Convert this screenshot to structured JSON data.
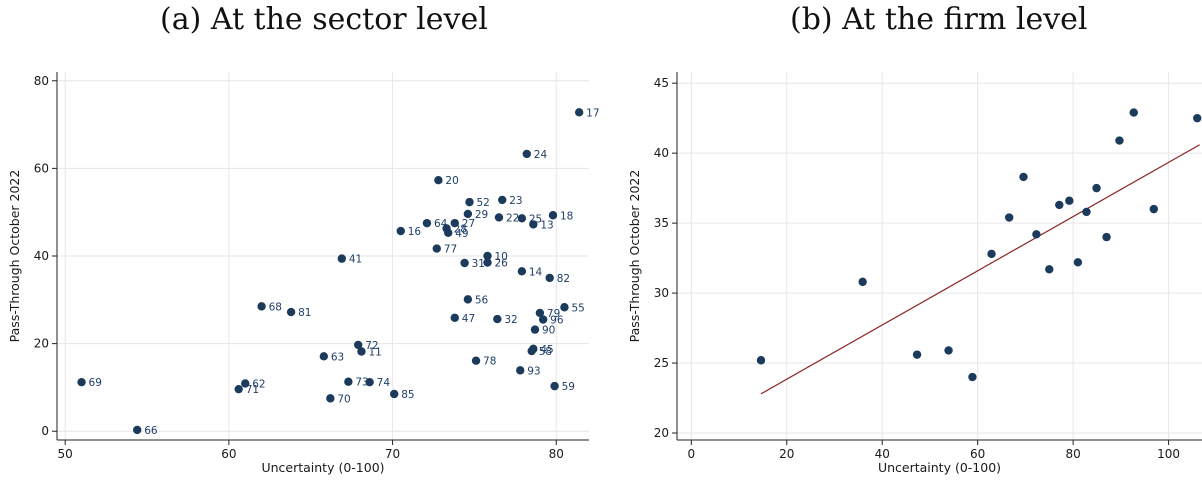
{
  "colors": {
    "marker": "#1b3a5c",
    "label": "#1f3f68",
    "fitline": "#8b2323",
    "grid": "#e6e6e6",
    "axis": "#222222"
  },
  "chart_data": [
    {
      "type": "scatter",
      "title": "(a) At the sector level",
      "xlabel": "Uncertainty (0-100)",
      "ylabel": "Pass-Through October 2022",
      "xlim": [
        49.5,
        82
      ],
      "ylim": [
        -2,
        82
      ],
      "xticks": [
        50,
        60,
        70,
        80
      ],
      "yticks": [
        0,
        20,
        40,
        60,
        80
      ],
      "grid": true,
      "points": [
        {
          "label": "17",
          "x": 81.4,
          "y": 72.8
        },
        {
          "label": "24",
          "x": 78.2,
          "y": 63.3
        },
        {
          "label": "20",
          "x": 72.8,
          "y": 57.3
        },
        {
          "label": "52",
          "x": 74.7,
          "y": 52.3
        },
        {
          "label": "23",
          "x": 76.7,
          "y": 52.8
        },
        {
          "label": "29",
          "x": 74.6,
          "y": 49.6
        },
        {
          "label": "22",
          "x": 76.5,
          "y": 48.8
        },
        {
          "label": "25",
          "x": 77.9,
          "y": 48.6
        },
        {
          "label": "18",
          "x": 79.8,
          "y": 49.3
        },
        {
          "label": "13",
          "x": 78.6,
          "y": 47.2
        },
        {
          "label": "64",
          "x": 72.1,
          "y": 47.5
        },
        {
          "label": "27",
          "x": 73.8,
          "y": 47.5
        },
        {
          "label": "28",
          "x": 73.3,
          "y": 46.3
        },
        {
          "label": "49",
          "x": 73.4,
          "y": 45.3
        },
        {
          "label": "16",
          "x": 70.5,
          "y": 45.7
        },
        {
          "label": "77",
          "x": 72.7,
          "y": 41.7
        },
        {
          "label": "10",
          "x": 75.8,
          "y": 40.0
        },
        {
          "label": "31",
          "x": 74.4,
          "y": 38.4
        },
        {
          "label": "26",
          "x": 75.8,
          "y": 38.5
        },
        {
          "label": "41",
          "x": 66.9,
          "y": 39.4
        },
        {
          "label": "14",
          "x": 77.9,
          "y": 36.5
        },
        {
          "label": "82",
          "x": 79.6,
          "y": 35.0
        },
        {
          "label": "56",
          "x": 74.6,
          "y": 30.1
        },
        {
          "label": "55",
          "x": 80.5,
          "y": 28.3
        },
        {
          "label": "79",
          "x": 79.0,
          "y": 27.0
        },
        {
          "label": "96",
          "x": 79.2,
          "y": 25.5
        },
        {
          "label": "47",
          "x": 73.8,
          "y": 25.9
        },
        {
          "label": "32",
          "x": 76.4,
          "y": 25.6
        },
        {
          "label": "90",
          "x": 78.7,
          "y": 23.2
        },
        {
          "label": "68",
          "x": 62.0,
          "y": 28.5
        },
        {
          "label": "81",
          "x": 63.8,
          "y": 27.2
        },
        {
          "label": "72",
          "x": 67.9,
          "y": 19.7
        },
        {
          "label": "11",
          "x": 68.1,
          "y": 18.2
        },
        {
          "label": "63",
          "x": 65.8,
          "y": 17.1
        },
        {
          "label": "45",
          "x": 78.6,
          "y": 18.8
        },
        {
          "label": "58",
          "x": 78.5,
          "y": 18.3
        },
        {
          "label": "78",
          "x": 75.1,
          "y": 16.1
        },
        {
          "label": "93",
          "x": 77.8,
          "y": 13.9
        },
        {
          "label": "69",
          "x": 51.0,
          "y": 11.2
        },
        {
          "label": "62",
          "x": 61.0,
          "y": 10.9
        },
        {
          "label": "71",
          "x": 60.6,
          "y": 9.6
        },
        {
          "label": "73",
          "x": 67.3,
          "y": 11.3
        },
        {
          "label": "74",
          "x": 68.6,
          "y": 11.2
        },
        {
          "label": "59",
          "x": 79.9,
          "y": 10.3
        },
        {
          "label": "85",
          "x": 70.1,
          "y": 8.5
        },
        {
          "label": "70",
          "x": 66.2,
          "y": 7.5
        },
        {
          "label": "66",
          "x": 54.4,
          "y": 0.3
        }
      ]
    },
    {
      "type": "scatter",
      "title": "(b) At the firm level",
      "xlabel": "Uncertainty (0-100)",
      "ylabel": "Pass-Through October 2022",
      "xlim": [
        -3,
        107
      ],
      "ylim": [
        19.5,
        45.8
      ],
      "xticks": [
        0,
        20,
        40,
        60,
        80,
        100
      ],
      "yticks": [
        20,
        25,
        30,
        35,
        40,
        45
      ],
      "grid": true,
      "fit_line": {
        "x": [
          14.6,
          106.5
        ],
        "y": [
          22.8,
          40.6
        ]
      },
      "points": [
        {
          "x": 14.6,
          "y": 25.2
        },
        {
          "x": 35.9,
          "y": 30.8
        },
        {
          "x": 47.3,
          "y": 25.6
        },
        {
          "x": 53.9,
          "y": 25.9
        },
        {
          "x": 58.9,
          "y": 24.0
        },
        {
          "x": 62.9,
          "y": 32.8
        },
        {
          "x": 66.6,
          "y": 35.4
        },
        {
          "x": 69.6,
          "y": 38.3
        },
        {
          "x": 72.3,
          "y": 34.2
        },
        {
          "x": 75.0,
          "y": 31.7
        },
        {
          "x": 77.1,
          "y": 36.3
        },
        {
          "x": 79.2,
          "y": 36.6
        },
        {
          "x": 81.0,
          "y": 32.2
        },
        {
          "x": 82.8,
          "y": 35.8
        },
        {
          "x": 84.9,
          "y": 37.5
        },
        {
          "x": 87.0,
          "y": 34.0
        },
        {
          "x": 89.7,
          "y": 40.9
        },
        {
          "x": 92.7,
          "y": 42.9
        },
        {
          "x": 96.9,
          "y": 36.0
        },
        {
          "x": 106.0,
          "y": 42.5
        }
      ]
    }
  ]
}
